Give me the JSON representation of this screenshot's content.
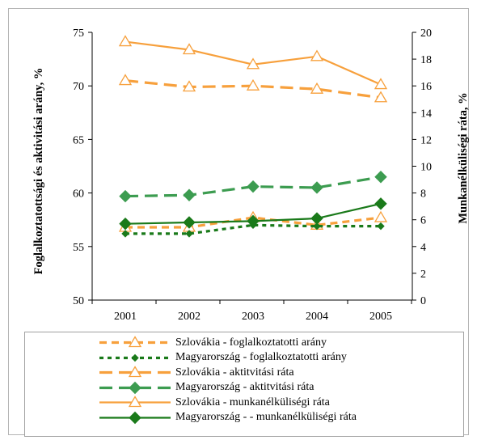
{
  "chart_data": {
    "type": "line",
    "categories": [
      "2001",
      "2002",
      "2003",
      "2004",
      "2005"
    ],
    "ylabel": "Foglalkoztatottsági és aktivitási arány, %",
    "ylabel_right": "Munkanélküliségi ráta, %",
    "ylim": [
      50,
      75
    ],
    "ylim_right": [
      0,
      20
    ],
    "yticks": [
      "50",
      "55",
      "60",
      "65",
      "70",
      "75"
    ],
    "yticks_right": [
      "0",
      "2",
      "4",
      "6",
      "8",
      "10",
      "12",
      "14",
      "16",
      "18",
      "20"
    ],
    "grid": false,
    "legend_position": "bottom",
    "series": [
      {
        "name": "Szlovákia - foglalkoztatotti arány",
        "axis": "left",
        "values": [
          56.8,
          56.8,
          57.7,
          57.0,
          57.7
        ],
        "color": "#f7a03c",
        "dash": "dashed",
        "marker": "triangle"
      },
      {
        "name": "Magyarország - foglalkoztatotti arány",
        "axis": "left",
        "values": [
          56.2,
          56.2,
          57.0,
          56.9,
          56.9
        ],
        "color": "#1a7a1a",
        "dash": "dotted",
        "marker": "diamond-small"
      },
      {
        "name": "Szlovákia - aktitvitási ráta",
        "axis": "left",
        "values": [
          70.5,
          69.9,
          70.0,
          69.7,
          68.9
        ],
        "color": "#f7a03c",
        "dash": "longdash",
        "marker": "triangle"
      },
      {
        "name": "Magyarország - aktitvitási ráta",
        "axis": "left",
        "values": [
          59.7,
          59.8,
          60.6,
          60.5,
          61.5
        ],
        "color": "#3c9c50",
        "dash": "longdash",
        "marker": "diamond"
      },
      {
        "name": "Szlovákia - munkanélküliségi ráta",
        "axis": "right",
        "values": [
          19.3,
          18.7,
          17.6,
          18.2,
          16.1
        ],
        "color": "#f7a03c",
        "dash": "solid",
        "marker": "triangle"
      },
      {
        "name": "Magyarország - - munkanélküliségi ráta",
        "axis": "right",
        "values": [
          5.7,
          5.8,
          5.9,
          6.1,
          7.2
        ],
        "color": "#1a7a1a",
        "dash": "solid",
        "marker": "diamond"
      }
    ]
  }
}
